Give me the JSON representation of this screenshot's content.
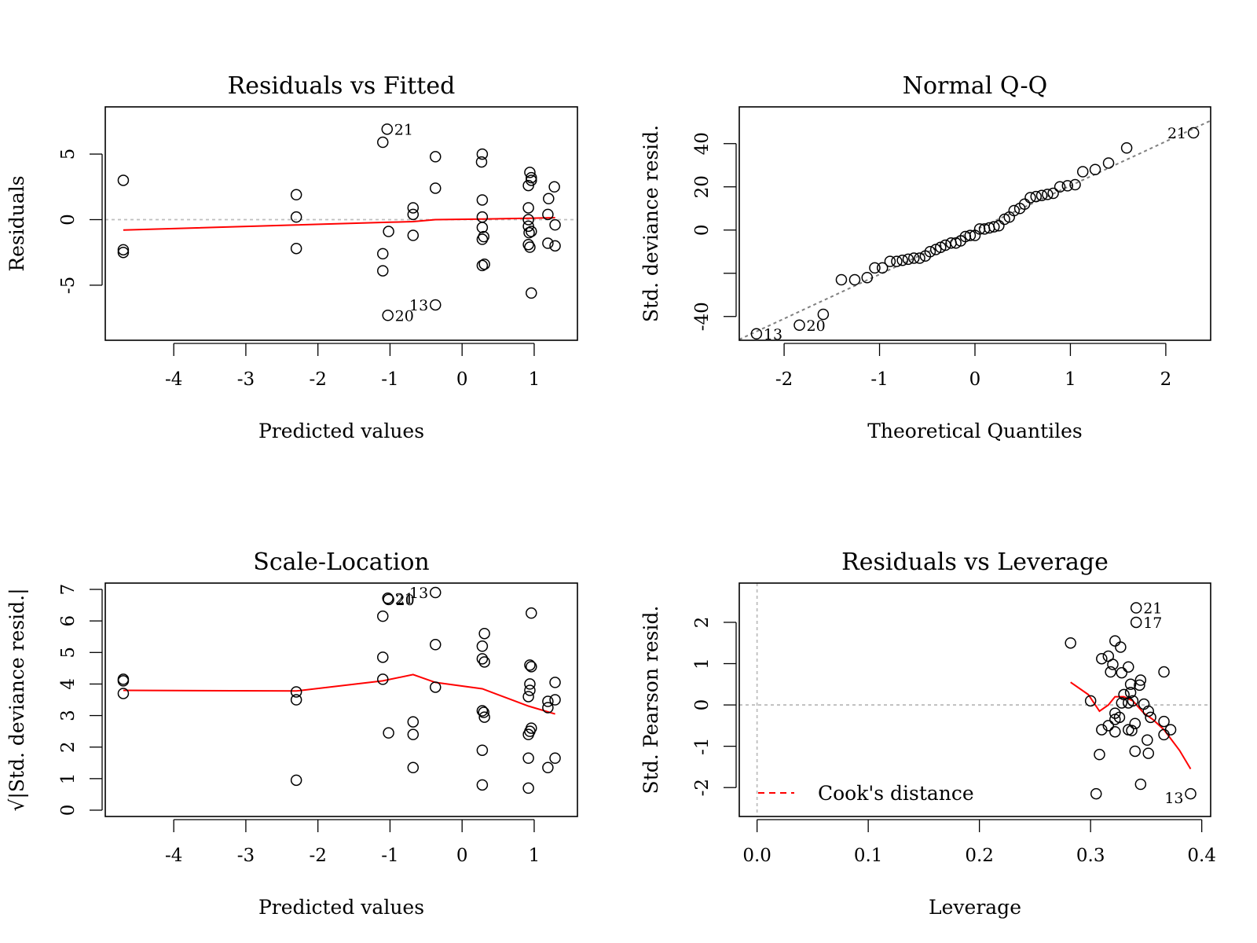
{
  "chart_data": [
    {
      "id": "rvf",
      "type": "scatter",
      "title": "Residuals vs Fitted",
      "xlabel": "Predicted values",
      "ylabel": "Residuals",
      "xlim": [
        -4.95,
        1.6
      ],
      "ylim": [
        -9.2,
        8.6
      ],
      "xticks": [
        -4,
        -3,
        -2,
        -1,
        0,
        1
      ],
      "yticks": [
        -5,
        0,
        5
      ],
      "ytick_labels": [
        "-5",
        "0",
        "5"
      ],
      "points": [
        {
          "x": -4.7,
          "y": 3.0
        },
        {
          "x": -4.7,
          "y": -2.3
        },
        {
          "x": -4.7,
          "y": -2.5
        },
        {
          "x": -2.3,
          "y": 1.9
        },
        {
          "x": -2.3,
          "y": 0.2
        },
        {
          "x": -2.3,
          "y": -2.2
        },
        {
          "x": -1.1,
          "y": 5.9
        },
        {
          "x": -1.04,
          "y": 6.9
        },
        {
          "x": -1.1,
          "y": -2.6
        },
        {
          "x": -1.1,
          "y": -3.9
        },
        {
          "x": -1.02,
          "y": -0.9
        },
        {
          "x": -1.03,
          "y": -7.3
        },
        {
          "x": -0.68,
          "y": 0.9
        },
        {
          "x": -0.68,
          "y": 0.4
        },
        {
          "x": -0.68,
          "y": -1.2
        },
        {
          "x": -0.37,
          "y": 4.8
        },
        {
          "x": -0.37,
          "y": 2.4
        },
        {
          "x": -0.37,
          "y": -6.5
        },
        {
          "x": 0.28,
          "y": 5.0
        },
        {
          "x": 0.27,
          "y": 4.4
        },
        {
          "x": 0.28,
          "y": 1.5
        },
        {
          "x": 0.28,
          "y": 0.2
        },
        {
          "x": 0.28,
          "y": -0.6
        },
        {
          "x": 0.28,
          "y": -1.5
        },
        {
          "x": 0.3,
          "y": -1.3
        },
        {
          "x": 0.28,
          "y": -3.5
        },
        {
          "x": 0.31,
          "y": -3.4
        },
        {
          "x": 0.94,
          "y": 3.6
        },
        {
          "x": 0.96,
          "y": 3.2
        },
        {
          "x": 0.96,
          "y": 3.0
        },
        {
          "x": 0.92,
          "y": 2.6
        },
        {
          "x": 0.92,
          "y": 0.9
        },
        {
          "x": 0.92,
          "y": 0.0
        },
        {
          "x": 0.92,
          "y": -0.5
        },
        {
          "x": 0.93,
          "y": -1.0
        },
        {
          "x": 0.96,
          "y": -0.9
        },
        {
          "x": 0.92,
          "y": -1.9
        },
        {
          "x": 0.94,
          "y": -2.1
        },
        {
          "x": 0.96,
          "y": -5.6
        },
        {
          "x": 1.28,
          "y": 2.5
        },
        {
          "x": 1.2,
          "y": 1.6
        },
        {
          "x": 1.19,
          "y": 0.4
        },
        {
          "x": 1.29,
          "y": -0.4
        },
        {
          "x": 1.19,
          "y": -1.8
        },
        {
          "x": 1.29,
          "y": -2.0
        }
      ],
      "labels": [
        {
          "text": "21",
          "x": -1.04,
          "y": 6.9,
          "side": "right"
        },
        {
          "text": "13",
          "x": -0.37,
          "y": -6.5,
          "side": "left"
        },
        {
          "text": "20",
          "x": -1.03,
          "y": -7.3,
          "side": "right"
        }
      ],
      "refline": {
        "type": "h",
        "value": 0
      },
      "smooth": [
        [
          -4.7,
          -0.8
        ],
        [
          -2.3,
          -0.4
        ],
        [
          -1.0,
          -0.2
        ],
        [
          -0.68,
          -0.15
        ],
        [
          -0.37,
          0.0
        ],
        [
          0.28,
          0.05
        ],
        [
          0.92,
          0.1
        ],
        [
          1.29,
          0.15
        ]
      ]
    },
    {
      "id": "qq",
      "type": "scatter",
      "title": "Normal Q-Q",
      "xlabel": "Theoretical Quantiles",
      "ylabel": "Std. deviance resid.",
      "xlim": [
        -2.47,
        2.47
      ],
      "ylim": [
        -51,
        57
      ],
      "xticks": [
        -2,
        -1,
        0,
        1,
        2
      ],
      "yticks": [
        -40,
        -20,
        0,
        20,
        40
      ],
      "ytick_labels": [
        "-40",
        "",
        "0",
        "20",
        "40"
      ],
      "points": [
        {
          "x": -2.29,
          "y": -48
        },
        {
          "x": -1.84,
          "y": -44
        },
        {
          "x": -1.59,
          "y": -39
        },
        {
          "x": -1.4,
          "y": -23
        },
        {
          "x": -1.26,
          "y": -23
        },
        {
          "x": -1.13,
          "y": -22
        },
        {
          "x": -1.05,
          "y": -17.5
        },
        {
          "x": -0.97,
          "y": -17.5
        },
        {
          "x": -0.89,
          "y": -14.5
        },
        {
          "x": -0.82,
          "y": -14.5
        },
        {
          "x": -0.76,
          "y": -14
        },
        {
          "x": -0.7,
          "y": -13.5
        },
        {
          "x": -0.64,
          "y": -13
        },
        {
          "x": -0.58,
          "y": -13
        },
        {
          "x": -0.52,
          "y": -12
        },
        {
          "x": -0.47,
          "y": -10
        },
        {
          "x": -0.41,
          "y": -9
        },
        {
          "x": -0.36,
          "y": -8
        },
        {
          "x": -0.31,
          "y": -7
        },
        {
          "x": -0.25,
          "y": -6
        },
        {
          "x": -0.2,
          "y": -6
        },
        {
          "x": -0.15,
          "y": -5
        },
        {
          "x": -0.1,
          "y": -3
        },
        {
          "x": -0.05,
          "y": -2.5
        },
        {
          "x": 0.0,
          "y": -2.5
        },
        {
          "x": 0.05,
          "y": 0.5
        },
        {
          "x": 0.1,
          "y": 0.5
        },
        {
          "x": 0.15,
          "y": 1
        },
        {
          "x": 0.2,
          "y": 1.5
        },
        {
          "x": 0.25,
          "y": 2
        },
        {
          "x": 0.31,
          "y": 5
        },
        {
          "x": 0.36,
          "y": 6
        },
        {
          "x": 0.41,
          "y": 9
        },
        {
          "x": 0.47,
          "y": 10
        },
        {
          "x": 0.52,
          "y": 12
        },
        {
          "x": 0.58,
          "y": 15
        },
        {
          "x": 0.64,
          "y": 15.5
        },
        {
          "x": 0.7,
          "y": 16
        },
        {
          "x": 0.76,
          "y": 16.5
        },
        {
          "x": 0.82,
          "y": 17
        },
        {
          "x": 0.89,
          "y": 20
        },
        {
          "x": 0.97,
          "y": 20.5
        },
        {
          "x": 1.05,
          "y": 21
        },
        {
          "x": 1.13,
          "y": 27
        },
        {
          "x": 1.26,
          "y": 28
        },
        {
          "x": 1.4,
          "y": 31
        },
        {
          "x": 1.59,
          "y": 38
        },
        {
          "x": 2.29,
          "y": 45
        }
      ],
      "labels": [
        {
          "text": "21",
          "x": 2.29,
          "y": 45,
          "side": "left"
        },
        {
          "text": "13",
          "x": -2.29,
          "y": -48,
          "side": "right"
        },
        {
          "text": "20",
          "x": -1.84,
          "y": -44,
          "side": "right"
        }
      ],
      "refline": {
        "type": "ab",
        "slope": 20.5,
        "intercept": 0
      }
    },
    {
      "id": "sl",
      "type": "scatter",
      "title": "Scale-Location",
      "xlabel": "Predicted values",
      "ylabel": "√|Std. deviance resid.|",
      "xlim": [
        -4.95,
        1.6
      ],
      "ylim": [
        -0.2,
        7.2
      ],
      "xticks": [
        -4,
        -3,
        -2,
        -1,
        0,
        1
      ],
      "yticks": [
        0,
        1,
        2,
        3,
        4,
        5,
        6,
        7
      ],
      "ytick_labels": [
        "0",
        "1",
        "2",
        "3",
        "4",
        "5",
        "6",
        "7"
      ],
      "points": [
        {
          "x": -4.7,
          "y": 4.15
        },
        {
          "x": -4.7,
          "y": 4.1
        },
        {
          "x": -4.7,
          "y": 3.7
        },
        {
          "x": -2.3,
          "y": 3.75
        },
        {
          "x": -2.3,
          "y": 3.5
        },
        {
          "x": -2.3,
          "y": 0.95
        },
        {
          "x": -1.1,
          "y": 6.15
        },
        {
          "x": -1.03,
          "y": 6.72
        },
        {
          "x": -1.02,
          "y": 6.68
        },
        {
          "x": -1.1,
          "y": 4.85
        },
        {
          "x": -1.1,
          "y": 4.15
        },
        {
          "x": -1.02,
          "y": 2.45
        },
        {
          "x": -0.68,
          "y": 2.8
        },
        {
          "x": -0.68,
          "y": 2.4
        },
        {
          "x": -0.68,
          "y": 1.35
        },
        {
          "x": -0.37,
          "y": 6.9
        },
        {
          "x": -0.37,
          "y": 5.25
        },
        {
          "x": -0.37,
          "y": 3.9
        },
        {
          "x": 0.31,
          "y": 5.6
        },
        {
          "x": 0.28,
          "y": 5.2
        },
        {
          "x": 0.28,
          "y": 4.8
        },
        {
          "x": 0.31,
          "y": 4.7
        },
        {
          "x": 0.28,
          "y": 3.15
        },
        {
          "x": 0.3,
          "y": 3.1
        },
        {
          "x": 0.31,
          "y": 2.95
        },
        {
          "x": 0.28,
          "y": 1.9
        },
        {
          "x": 0.28,
          "y": 0.8
        },
        {
          "x": 0.96,
          "y": 6.25
        },
        {
          "x": 0.94,
          "y": 4.6
        },
        {
          "x": 0.96,
          "y": 4.55
        },
        {
          "x": 0.94,
          "y": 4.0
        },
        {
          "x": 0.94,
          "y": 3.8
        },
        {
          "x": 0.92,
          "y": 3.6
        },
        {
          "x": 0.96,
          "y": 2.6
        },
        {
          "x": 0.94,
          "y": 2.5
        },
        {
          "x": 0.92,
          "y": 2.4
        },
        {
          "x": 0.92,
          "y": 1.65
        },
        {
          "x": 0.92,
          "y": 0.7
        },
        {
          "x": 1.29,
          "y": 4.05
        },
        {
          "x": 1.29,
          "y": 3.5
        },
        {
          "x": 1.19,
          "y": 3.45
        },
        {
          "x": 1.19,
          "y": 3.25
        },
        {
          "x": 1.29,
          "y": 1.65
        },
        {
          "x": 1.19,
          "y": 1.35
        }
      ],
      "labels": [
        {
          "text": "21",
          "x": -1.03,
          "y": 6.72,
          "side": "right"
        },
        {
          "text": "20",
          "x": -1.02,
          "y": 6.68,
          "side": "right"
        },
        {
          "text": "13",
          "x": -0.37,
          "y": 6.9,
          "side": "left"
        }
      ],
      "smooth": [
        [
          -4.7,
          3.8
        ],
        [
          -2.3,
          3.78
        ],
        [
          -1.1,
          4.1
        ],
        [
          -0.68,
          4.3
        ],
        [
          -0.37,
          4.05
        ],
        [
          0.28,
          3.85
        ],
        [
          0.92,
          3.3
        ],
        [
          1.29,
          3.05
        ]
      ]
    },
    {
      "id": "rvl",
      "type": "scatter",
      "title": "Residuals vs Leverage",
      "xlabel": "Leverage",
      "ylabel": "Std. Pearson resid.",
      "xlim": [
        -0.016,
        0.408
      ],
      "ylim": [
        -2.7,
        2.95
      ],
      "xticks": [
        0.0,
        0.1,
        0.2,
        0.3,
        0.4
      ],
      "xtick_labels": [
        "0.0",
        "0.1",
        "0.2",
        "0.3",
        "0.4"
      ],
      "yticks": [
        -2,
        -1,
        0,
        1,
        2
      ],
      "ytick_labels": [
        "-2",
        "-1",
        "0",
        "1",
        "2"
      ],
      "points": [
        {
          "x": 0.341,
          "y": 2.35
        },
        {
          "x": 0.341,
          "y": 2.0
        },
        {
          "x": 0.282,
          "y": 1.5
        },
        {
          "x": 0.322,
          "y": 1.55
        },
        {
          "x": 0.327,
          "y": 1.4
        },
        {
          "x": 0.31,
          "y": 1.12
        },
        {
          "x": 0.316,
          "y": 1.18
        },
        {
          "x": 0.32,
          "y": 0.98
        },
        {
          "x": 0.334,
          "y": 0.92
        },
        {
          "x": 0.318,
          "y": 0.8
        },
        {
          "x": 0.328,
          "y": 0.78
        },
        {
          "x": 0.366,
          "y": 0.8
        },
        {
          "x": 0.345,
          "y": 0.6
        },
        {
          "x": 0.336,
          "y": 0.5
        },
        {
          "x": 0.344,
          "y": 0.48
        },
        {
          "x": 0.33,
          "y": 0.25
        },
        {
          "x": 0.336,
          "y": 0.3
        },
        {
          "x": 0.338,
          "y": 0.1
        },
        {
          "x": 0.328,
          "y": 0.05
        },
        {
          "x": 0.334,
          "y": 0.05
        },
        {
          "x": 0.3,
          "y": 0.1
        },
        {
          "x": 0.348,
          "y": 0.02
        },
        {
          "x": 0.352,
          "y": -0.15
        },
        {
          "x": 0.322,
          "y": -0.2
        },
        {
          "x": 0.326,
          "y": -0.3
        },
        {
          "x": 0.322,
          "y": -0.35
        },
        {
          "x": 0.354,
          "y": -0.3
        },
        {
          "x": 0.316,
          "y": -0.5
        },
        {
          "x": 0.34,
          "y": -0.45
        },
        {
          "x": 0.366,
          "y": -0.4
        },
        {
          "x": 0.31,
          "y": -0.6
        },
        {
          "x": 0.322,
          "y": -0.65
        },
        {
          "x": 0.334,
          "y": -0.6
        },
        {
          "x": 0.337,
          "y": -0.62
        },
        {
          "x": 0.372,
          "y": -0.6
        },
        {
          "x": 0.366,
          "y": -0.72
        },
        {
          "x": 0.351,
          "y": -0.85
        },
        {
          "x": 0.34,
          "y": -1.12
        },
        {
          "x": 0.352,
          "y": -1.17
        },
        {
          "x": 0.308,
          "y": -1.2
        },
        {
          "x": 0.345,
          "y": -1.92
        },
        {
          "x": 0.305,
          "y": -2.15
        },
        {
          "x": 0.39,
          "y": -2.15
        }
      ],
      "labels": [
        {
          "text": "21",
          "x": 0.341,
          "y": 2.35,
          "side": "right"
        },
        {
          "text": "17",
          "x": 0.341,
          "y": 2.0,
          "side": "right"
        },
        {
          "text": "13",
          "x": 0.39,
          "y": -2.15,
          "side": "left-below"
        }
      ],
      "refline_h": 0,
      "refline_v": 0,
      "smooth": [
        [
          0.282,
          0.55
        ],
        [
          0.298,
          0.25
        ],
        [
          0.308,
          -0.15
        ],
        [
          0.316,
          0.0
        ],
        [
          0.322,
          0.2
        ],
        [
          0.33,
          0.2
        ],
        [
          0.338,
          0.1
        ],
        [
          0.348,
          -0.2
        ],
        [
          0.356,
          -0.35
        ],
        [
          0.366,
          -0.6
        ],
        [
          0.38,
          -1.1
        ],
        [
          0.39,
          -1.55
        ]
      ],
      "legend": {
        "label": "Cook's distance",
        "placement": "bottom-left",
        "style": "dashed",
        "color": "#ff0000"
      }
    }
  ],
  "colors": {
    "smooth": "#ff0000",
    "refline": "#bebebe",
    "qqline": "#808080",
    "points": "#000000"
  }
}
